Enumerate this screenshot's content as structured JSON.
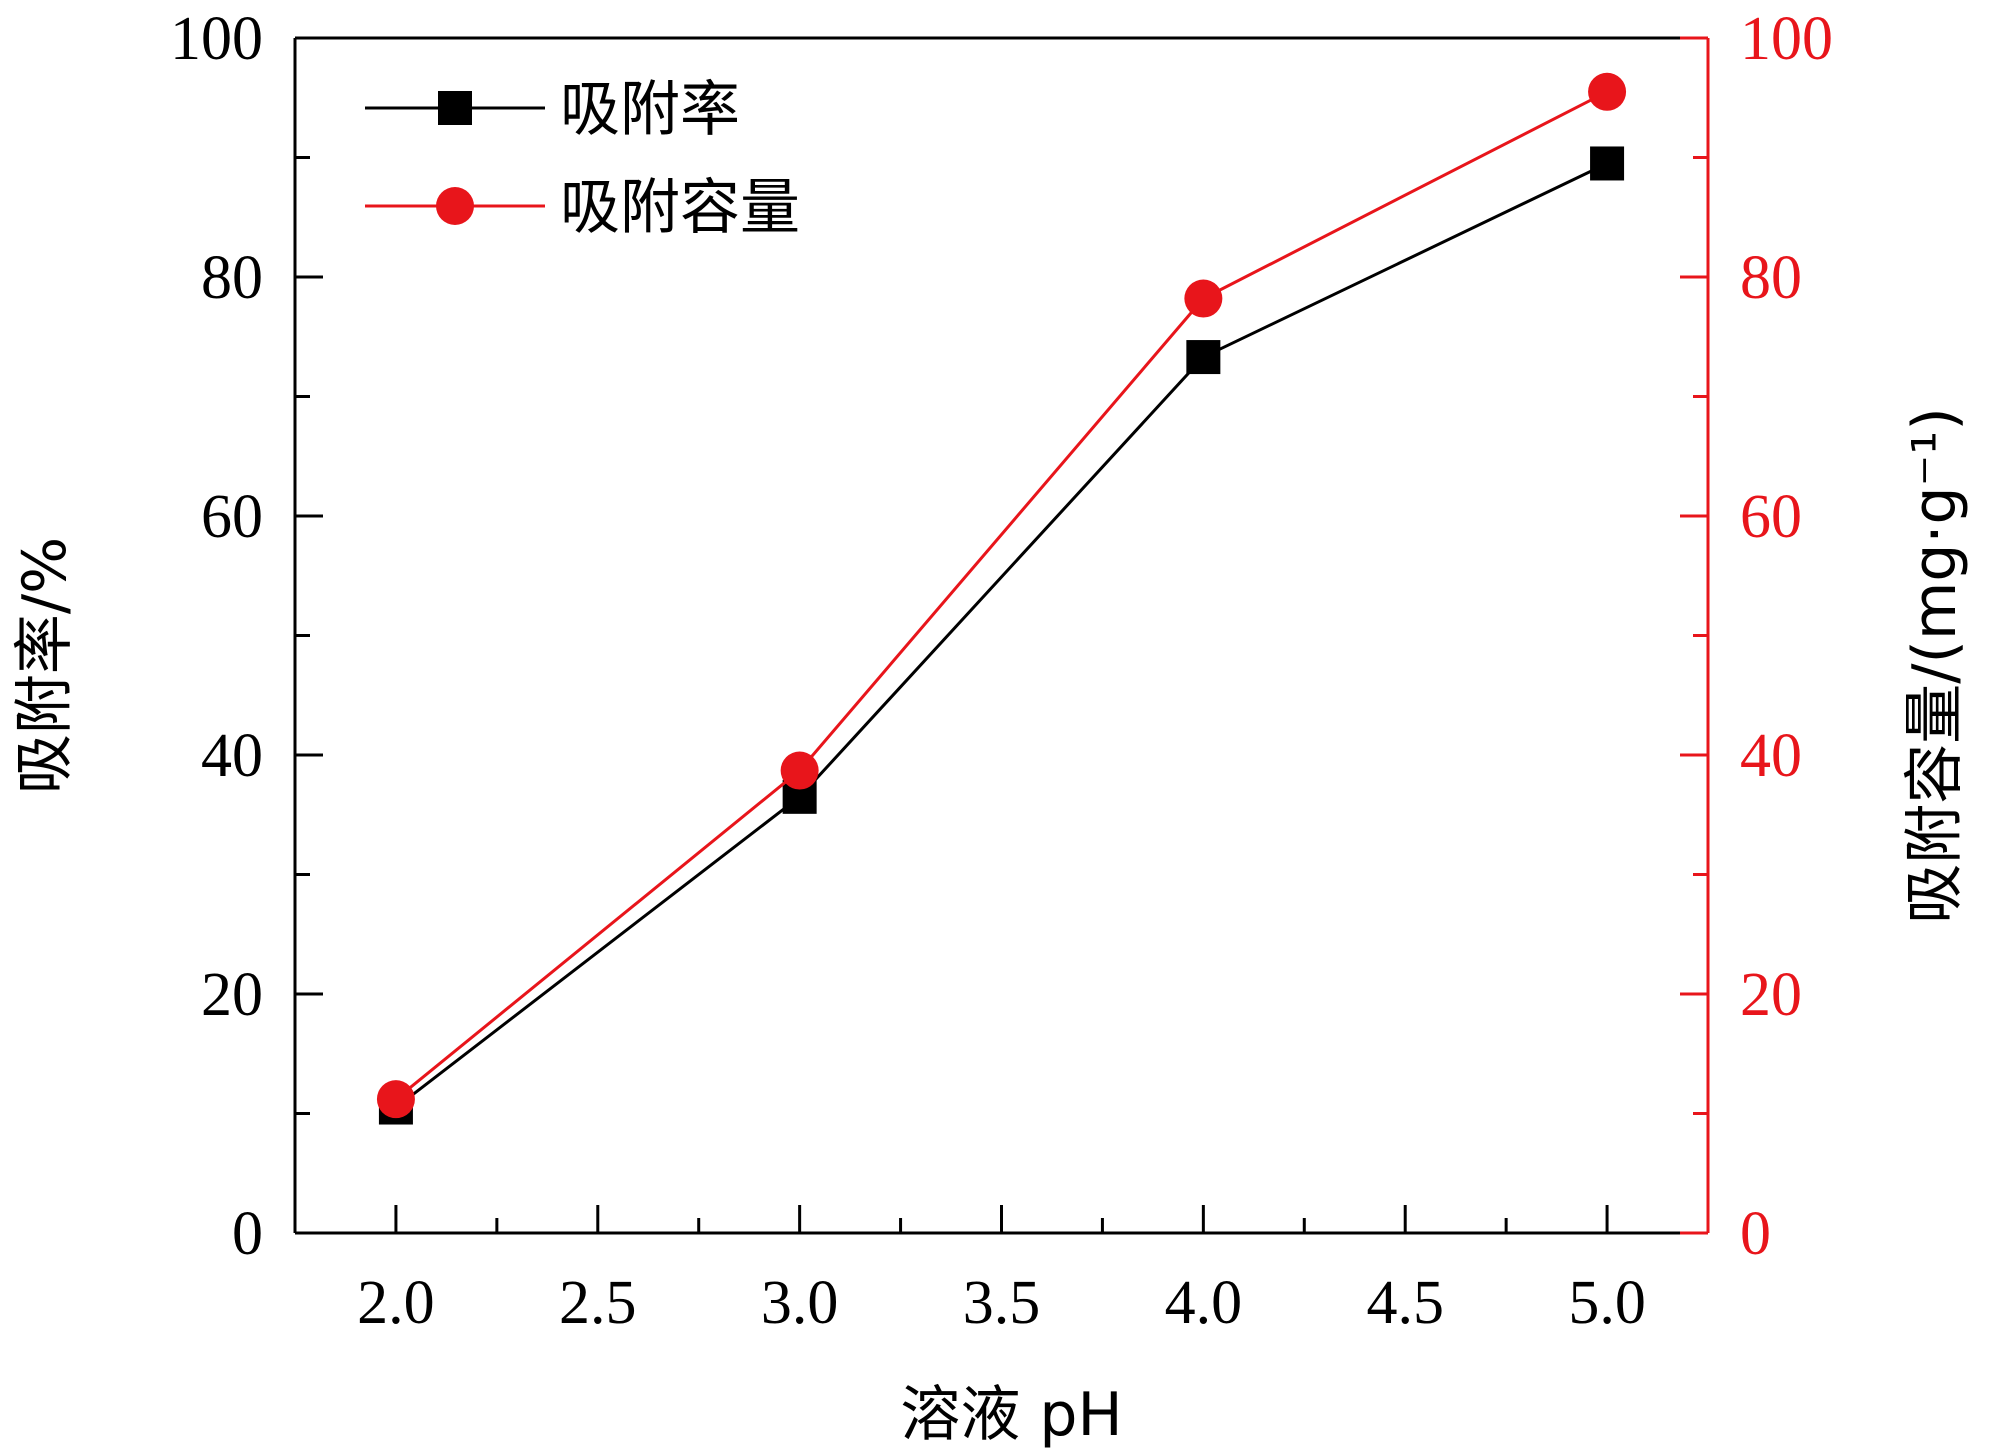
{
  "colors": {
    "adsorption_rate": "#000000",
    "adsorption_capacity": "#e8151b",
    "right_axis": "#e8151b"
  },
  "chart_data": {
    "type": "line",
    "xlabel": "溶液 pH",
    "ylabel_left": "吸附率/%",
    "ylabel_right": "吸附容量/(mg·g⁻¹)",
    "xlim": [
      1.75,
      5.25
    ],
    "ylim_left": [
      0,
      100
    ],
    "ylim_right": [
      0,
      100
    ],
    "x_ticks": [
      "2.0",
      "2.5",
      "3.0",
      "3.5",
      "4.0",
      "4.5",
      "5.0"
    ],
    "y_ticks_left": [
      "0",
      "20",
      "40",
      "60",
      "80",
      "100"
    ],
    "y_ticks_right": [
      "0",
      "20",
      "40",
      "60",
      "80",
      "100"
    ],
    "legend_position": "top-left",
    "grid": false,
    "series": [
      {
        "name": "吸附率",
        "axis": "left",
        "marker": "square",
        "x": [
          2.0,
          3.0,
          4.0,
          5.0
        ],
        "values": [
          10.5,
          36.5,
          73.3,
          89.5
        ]
      },
      {
        "name": "吸附容量",
        "axis": "right",
        "marker": "circle",
        "x": [
          2.0,
          3.0,
          4.0,
          5.0
        ],
        "values": [
          11.2,
          38.7,
          78.2,
          95.5
        ]
      }
    ]
  }
}
